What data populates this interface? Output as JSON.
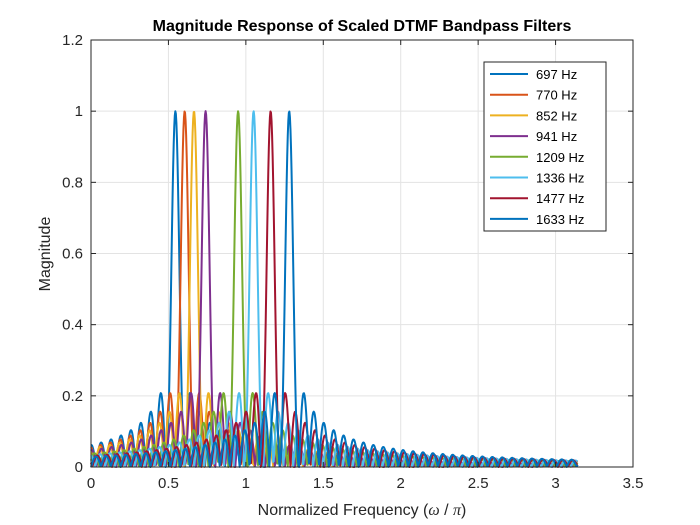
{
  "chart_data": {
    "type": "line",
    "title": "Magnitude Response of Scaled DTMF Bandpass Filters",
    "xlabel_prefix": "Normalized Frequency (",
    "xlabel_omega": "ω",
    "xlabel_sep": " / ",
    "xlabel_pi": "π",
    "xlabel_suffix": ")",
    "ylabel": "Magnitude",
    "xlim": [
      0,
      3.5
    ],
    "ylim": [
      0,
      1.2
    ],
    "xticks": [
      0,
      0.5,
      1,
      1.5,
      2,
      2.5,
      3,
      3.5
    ],
    "xtick_labels": [
      "0",
      "0.5",
      "1",
      "1.5",
      "2",
      "2.5",
      "3",
      "3.5"
    ],
    "yticks": [
      0,
      0.2,
      0.4,
      0.6,
      0.8,
      1,
      1.2
    ],
    "ytick_labels": [
      "0",
      "0.2",
      "0.4",
      "0.6",
      "0.8",
      "1",
      "1.2"
    ],
    "grid": true,
    "legend_position": "top-right",
    "x_domain": [
      0,
      3.1416
    ],
    "peak_value": 1.0,
    "main_lobe_half_width": 0.064,
    "series": [
      {
        "name": "697 Hz",
        "color": "#0072BD",
        "peak_x": 0.545
      },
      {
        "name": "770 Hz",
        "color": "#D95319",
        "peak_x": 0.605
      },
      {
        "name": "852 Hz",
        "color": "#EDB120",
        "peak_x": 0.665
      },
      {
        "name": "941 Hz",
        "color": "#7E2F8E",
        "peak_x": 0.74
      },
      {
        "name": "1209 Hz",
        "color": "#77AC30",
        "peak_x": 0.95
      },
      {
        "name": "1336 Hz",
        "color": "#4DBEEE",
        "peak_x": 1.05
      },
      {
        "name": "1477 Hz",
        "color": "#A2142F",
        "peak_x": 1.16
      },
      {
        "name": "1633 Hz",
        "color": "#0072BD",
        "peak_x": 1.28
      }
    ]
  }
}
